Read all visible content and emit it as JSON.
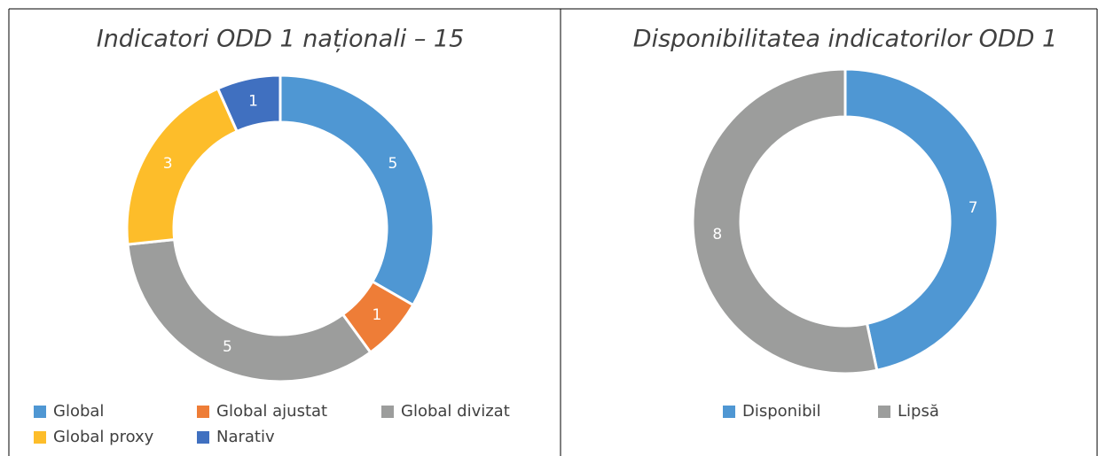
{
  "chart_data": [
    {
      "type": "donut",
      "title": "Indicatori ODD 1 naționali – 15",
      "categories": [
        "Global",
        "Global ajustat",
        "Global divizat",
        "Global proxy",
        "Narativ"
      ],
      "values": [
        5,
        1,
        5,
        3,
        1
      ],
      "colors": [
        "#4f97d3",
        "#ee7d37",
        "#9c9d9c",
        "#fdbd2a",
        "#4070c0"
      ],
      "legend": "bottom"
    },
    {
      "type": "donut",
      "title": "Disponibilitatea indicatorilor ODD 1",
      "categories": [
        "Disponibil",
        "Lipsă"
      ],
      "values": [
        7,
        8
      ],
      "colors": [
        "#4f97d3",
        "#9c9d9c"
      ],
      "legend": "bottom"
    }
  ]
}
